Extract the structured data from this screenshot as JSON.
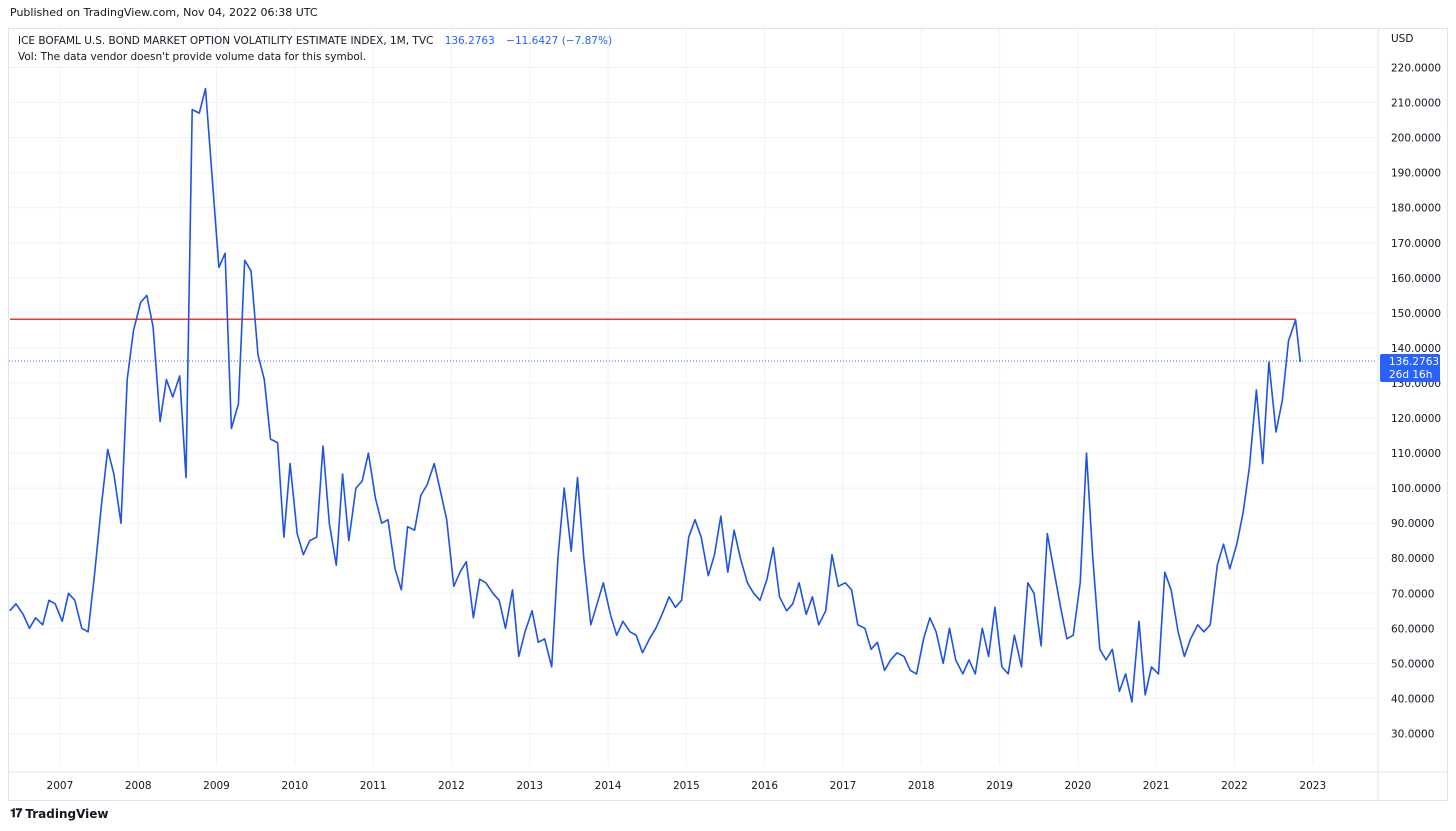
{
  "header": {
    "published": "Published on TradingView.com, Nov 04, 2022 06:38 UTC"
  },
  "legend": {
    "symbol": "ICE BOFAML U.S. BOND MARKET OPTION VOLATILITY ESTIMATE INDEX, 1M, TVC",
    "last": "136.2763",
    "change": "−11.6427 (−7.87%)",
    "volume_note": "Vol: The data vendor doesn't provide volume data for this symbol."
  },
  "price_axis": {
    "currency": "USD",
    "last_label": "136.2763",
    "countdown": "26d 16h"
  },
  "footer": {
    "brand": "TradingView"
  },
  "colors": {
    "line": "#1e53e5",
    "hline": "#e53935",
    "label_bg": "#2962ff",
    "grid": "#f0f3fa"
  },
  "chart_data": {
    "type": "line",
    "ylim": [
      21,
      231
    ],
    "xlim": [
      2006.35,
      2023.82
    ],
    "y_ticks": [
      "30.0000",
      "40.0000",
      "50.0000",
      "60.0000",
      "70.0000",
      "80.0000",
      "90.0000",
      "100.0000",
      "110.0000",
      "120.0000",
      "130.0000",
      "140.0000",
      "150.0000",
      "160.0000",
      "170.0000",
      "180.0000",
      "190.0000",
      "200.0000",
      "210.0000",
      "220.0000"
    ],
    "x_ticks": [
      "2007",
      "2008",
      "2009",
      "2010",
      "2011",
      "2012",
      "2013",
      "2014",
      "2015",
      "2016",
      "2017",
      "2018",
      "2019",
      "2020",
      "2021",
      "2022",
      "2023"
    ],
    "horizontal_line": 148.2,
    "last_value": 136.2763,
    "series": [
      {
        "x": [
          2006.36,
          2006.44,
          2006.53,
          2006.61,
          2006.69,
          2006.78,
          2006.86,
          2006.94,
          2007.03,
          2007.11,
          2007.19,
          2007.28,
          2007.36,
          2007.44,
          2007.53,
          2007.61,
          2007.69,
          2007.78,
          2007.86,
          2007.94,
          2008.03,
          2008.11,
          2008.19,
          2008.28,
          2008.36,
          2008.44,
          2008.53,
          2008.61,
          2008.69,
          2008.78,
          2008.86,
          2008.94,
          2009.03,
          2009.11,
          2009.19,
          2009.28,
          2009.36,
          2009.44,
          2009.53,
          2009.61,
          2009.69,
          2009.78,
          2009.86,
          2009.94,
          2010.03,
          2010.11,
          2010.19,
          2010.28,
          2010.36,
          2010.44,
          2010.53,
          2010.61,
          2010.69,
          2010.78,
          2010.86,
          2010.94,
          2011.03,
          2011.11,
          2011.19,
          2011.28,
          2011.36,
          2011.44,
          2011.53,
          2011.61,
          2011.69,
          2011.78,
          2011.86,
          2011.94,
          2012.03,
          2012.11,
          2012.19,
          2012.28,
          2012.36,
          2012.44,
          2012.53,
          2012.61,
          2012.69,
          2012.78,
          2012.86,
          2012.94,
          2013.03,
          2013.11,
          2013.19,
          2013.28,
          2013.36,
          2013.44,
          2013.53,
          2013.61,
          2013.69,
          2013.78,
          2013.86,
          2013.94,
          2014.03,
          2014.11,
          2014.19,
          2014.28,
          2014.36,
          2014.44,
          2014.53,
          2014.61,
          2014.69,
          2014.78,
          2014.86,
          2014.94,
          2015.03,
          2015.11,
          2015.19,
          2015.28,
          2015.36,
          2015.44,
          2015.53,
          2015.61,
          2015.69,
          2015.78,
          2015.86,
          2015.94,
          2016.03,
          2016.11,
          2016.19,
          2016.28,
          2016.36,
          2016.44,
          2016.53,
          2016.61,
          2016.69,
          2016.78,
          2016.86,
          2016.94,
          2017.03,
          2017.11,
          2017.19,
          2017.28,
          2017.36,
          2017.44,
          2017.53,
          2017.61,
          2017.69,
          2017.78,
          2017.86,
          2017.94,
          2018.03,
          2018.11,
          2018.19,
          2018.28,
          2018.36,
          2018.44,
          2018.53,
          2018.61,
          2018.69,
          2018.78,
          2018.86,
          2018.94,
          2019.03,
          2019.11,
          2019.19,
          2019.28,
          2019.36,
          2019.44,
          2019.53,
          2019.61,
          2019.69,
          2019.78,
          2019.86,
          2019.94,
          2020.03,
          2020.11,
          2020.19,
          2020.28,
          2020.36,
          2020.44,
          2020.53,
          2020.61,
          2020.69,
          2020.78,
          2020.86,
          2020.94,
          2021.03,
          2021.11,
          2021.19,
          2021.28,
          2021.36,
          2021.44,
          2021.53,
          2021.61,
          2021.69,
          2021.78,
          2021.86,
          2021.94,
          2022.03,
          2022.11,
          2022.19,
          2022.28,
          2022.36,
          2022.44,
          2022.53,
          2022.61,
          2022.69,
          2022.78,
          2022.84
        ],
        "values": [
          65,
          67,
          64,
          60,
          63,
          61,
          68,
          67,
          62,
          70,
          68,
          60,
          59,
          75,
          95,
          111,
          104,
          90,
          131,
          145,
          153,
          155,
          146,
          119,
          131,
          126,
          132,
          103,
          208,
          207,
          214,
          190,
          163,
          167,
          117,
          124,
          165,
          162,
          138,
          131,
          114,
          113,
          86,
          107,
          87,
          81,
          85,
          86,
          112,
          90,
          78,
          104,
          85,
          100,
          102,
          110,
          97,
          90,
          91,
          77,
          71,
          89,
          88,
          98,
          101,
          107,
          99,
          91,
          72,
          76,
          79,
          63,
          74,
          73,
          70,
          68,
          60,
          71,
          52,
          59,
          65,
          56,
          57,
          49,
          80,
          100,
          82,
          103,
          80,
          61,
          67,
          73,
          64,
          58,
          62,
          59,
          58,
          53,
          57,
          60,
          64,
          69,
          66,
          68,
          86,
          91,
          86,
          75,
          81,
          92,
          76,
          88,
          80,
          73,
          70,
          68,
          74,
          83,
          69,
          65,
          67,
          73,
          64,
          69,
          61,
          65,
          81,
          72,
          73,
          71,
          61,
          60,
          54,
          56,
          48,
          51,
          53,
          52,
          48,
          47,
          57,
          63,
          59,
          50,
          60,
          51,
          47,
          51,
          47,
          60,
          52,
          66,
          49,
          47,
          58,
          49,
          73,
          70,
          55,
          87,
          77,
          66,
          57,
          58,
          73,
          110,
          80,
          54,
          51,
          54,
          42,
          47,
          39,
          62,
          41,
          49,
          47,
          76,
          71,
          59,
          52,
          57,
          61,
          59,
          61,
          78,
          84,
          77,
          84,
          93,
          106,
          128,
          107,
          136,
          116,
          125,
          142,
          148,
          136
        ]
      }
    ]
  }
}
